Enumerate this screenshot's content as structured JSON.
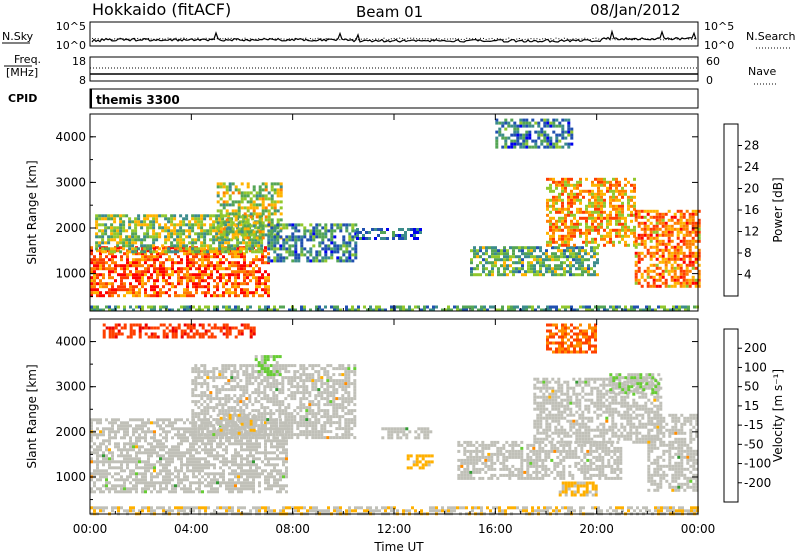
{
  "header": {
    "station": "Hokkaido (fitACF)",
    "beam": "Beam 01",
    "date": "08/Jan/2012"
  },
  "strips": {
    "nsky_label": "N.Sky",
    "nsky_ticks": [
      "10^5",
      "10^0"
    ],
    "nsearch_label": "N.Search",
    "nsearch_ticks": [
      "10^5",
      "10^0"
    ],
    "freq_label_1": "Freq.",
    "freq_label_2": "[MHz]",
    "freq_ticks": [
      "18",
      "8"
    ],
    "nave_label": "Nave",
    "nave_ticks": [
      "60",
      "0"
    ],
    "cpid_label": "CPID",
    "cpid_value": "themis 3300"
  },
  "colors": {
    "power_scale": [
      "#0000ee",
      "#2050b0",
      "#3c8c8c",
      "#54a554",
      "#92c82c",
      "#ffb400",
      "#ff8000",
      "#ff3c00",
      "#ff0000"
    ],
    "velocity_scale": [
      "#ee0000",
      "#ff4000",
      "#ff8c00",
      "#ffb000",
      "#c0c0b8",
      "#c0c0b8",
      "#66cc33",
      "#339933",
      "#2c5aa8",
      "#1a1aaa"
    ],
    "ground_scatter": "#c0c0b8"
  },
  "chart_data": [
    {
      "type": "heatmap",
      "title": "",
      "xlabel": "",
      "ylabel": "Slant Range [km]",
      "x_ticks": [
        "00:00",
        "04:00",
        "08:00",
        "12:00",
        "16:00",
        "20:00",
        "00:00"
      ],
      "y_ticks": [
        "1000",
        "2000",
        "3000",
        "4000"
      ],
      "ylim": [
        180,
        4500
      ],
      "xlim_hours": [
        0,
        24
      ],
      "colorbar": {
        "label": "Power [dB]",
        "ticks": [
          "28",
          "24",
          "20",
          "16",
          "12",
          "8",
          "4"
        ],
        "range": [
          0,
          30
        ]
      },
      "regions": [
        {
          "t0": 0.0,
          "t1": 7.0,
          "r0": 500,
          "r1": 1600,
          "level": 24
        },
        {
          "t0": 0.2,
          "t1": 6.8,
          "r0": 1500,
          "r1": 2300,
          "level": 14
        },
        {
          "t0": 5.0,
          "t1": 7.5,
          "r0": 1800,
          "r1": 3000,
          "level": 15
        },
        {
          "t0": 7.0,
          "t1": 10.5,
          "r0": 1300,
          "r1": 2100,
          "level": 9
        },
        {
          "t0": 10.5,
          "t1": 13.0,
          "r0": 1800,
          "r1": 2000,
          "level": 6
        },
        {
          "t0": 15.0,
          "t1": 20.0,
          "r0": 1000,
          "r1": 1600,
          "level": 12
        },
        {
          "t0": 16.0,
          "t1": 19.0,
          "r0": 3800,
          "r1": 4400,
          "level": 8
        },
        {
          "t0": 18.0,
          "t1": 21.5,
          "r0": 1600,
          "r1": 3100,
          "level": 20
        },
        {
          "t0": 21.5,
          "t1": 24.0,
          "r0": 700,
          "r1": 2400,
          "level": 22
        },
        {
          "t0": 0.0,
          "t1": 24.0,
          "r0": 180,
          "r1": 300,
          "level": 10
        }
      ]
    },
    {
      "type": "heatmap",
      "title": "",
      "xlabel": "Time UT",
      "ylabel": "Slant Range [km]",
      "x_ticks": [
        "00:00",
        "04:00",
        "08:00",
        "12:00",
        "16:00",
        "20:00",
        "00:00"
      ],
      "y_ticks": [
        "1000",
        "2000",
        "3000",
        "4000"
      ],
      "ylim": [
        180,
        4500
      ],
      "xlim_hours": [
        0,
        24
      ],
      "colorbar": {
        "label": "Velocity [m s⁻¹]",
        "ticks": [
          "200",
          "100",
          "50",
          "15",
          "-15",
          "-50",
          "-100",
          "-200"
        ],
        "range": [
          -250,
          250
        ]
      },
      "regions": [
        {
          "t0": 0.0,
          "t1": 7.8,
          "r0": 700,
          "r1": 2300,
          "kind": "ground"
        },
        {
          "t0": 4.0,
          "t1": 10.5,
          "r0": 1900,
          "r1": 3500,
          "kind": "ground"
        },
        {
          "t0": 11.5,
          "t1": 13.5,
          "r0": 1900,
          "r1": 2100,
          "kind": "ground"
        },
        {
          "t0": 14.5,
          "t1": 21.0,
          "r0": 1000,
          "r1": 1800,
          "kind": "ground"
        },
        {
          "t0": 17.5,
          "t1": 22.5,
          "r0": 1800,
          "r1": 3200,
          "kind": "ground"
        },
        {
          "t0": 22.0,
          "t1": 24.0,
          "r0": 700,
          "r1": 2400,
          "kind": "ground"
        },
        {
          "t0": 0.5,
          "t1": 6.5,
          "r0": 4100,
          "r1": 4400,
          "velocity": -180
        },
        {
          "t0": 18.0,
          "t1": 20.0,
          "r0": 3800,
          "r1": 4400,
          "velocity": -150
        },
        {
          "t0": 12.5,
          "t1": 13.5,
          "r0": 1200,
          "r1": 1500,
          "velocity": -70
        },
        {
          "t0": 18.5,
          "t1": 20.0,
          "r0": 600,
          "r1": 900,
          "velocity": -60
        },
        {
          "t0": 5.0,
          "t1": 6.5,
          "r0": 2000,
          "r1": 2400,
          "velocity": -40
        },
        {
          "t0": 20.5,
          "t1": 22.5,
          "r0": 2900,
          "r1": 3300,
          "velocity": 40
        },
        {
          "t0": 6.5,
          "t1": 7.5,
          "r0": 3300,
          "r1": 3700,
          "velocity": 60
        },
        {
          "t0": 0.0,
          "t1": 24.0,
          "r0": 180,
          "r1": 350,
          "velocity": -40
        }
      ]
    }
  ]
}
